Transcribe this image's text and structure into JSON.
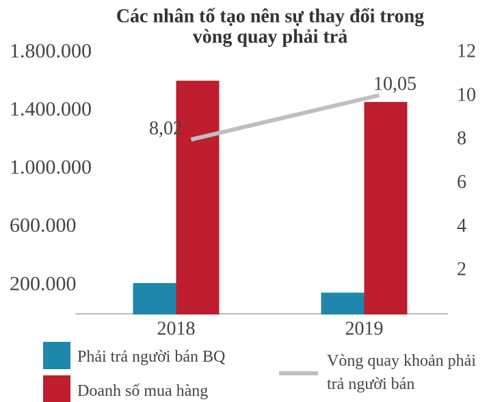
{
  "chart_data": {
    "type": "bar_line",
    "title": [
      "Các nhân tố tạo nên sự thay đổi trong",
      "vòng quay phải trả"
    ],
    "categories": [
      "2018",
      "2019"
    ],
    "series": [
      {
        "name": "Phải trả người bán BQ",
        "color": "#1f87ac",
        "type": "bar",
        "values": [
          216000,
          150000
        ]
      },
      {
        "name": "Doanh số mua hàng",
        "color": "#be1e2d",
        "type": "bar",
        "values": [
          1607000,
          1461000
        ]
      },
      {
        "name": "Vòng quay khoản phải trả người bán",
        "color": "#bfbfbf",
        "type": "line",
        "axis": "y2",
        "values": [
          8.02,
          10.05
        ],
        "value_labels": [
          "8,02",
          "10,05"
        ]
      }
    ],
    "ylim": [
      0,
      1800000
    ],
    "yticks": [
      {
        "value": 200000,
        "label": "200.000"
      },
      {
        "value": 600000,
        "label": "600.000"
      },
      {
        "value": 1000000,
        "label": "1.000.000"
      },
      {
        "value": 1400000,
        "label": "1.400.000"
      },
      {
        "value": 1800000,
        "label": "1.800.000"
      }
    ],
    "y2lim": [
      0,
      12
    ],
    "y2ticks": [
      2,
      4,
      6,
      8,
      10,
      12
    ],
    "grid": false
  }
}
